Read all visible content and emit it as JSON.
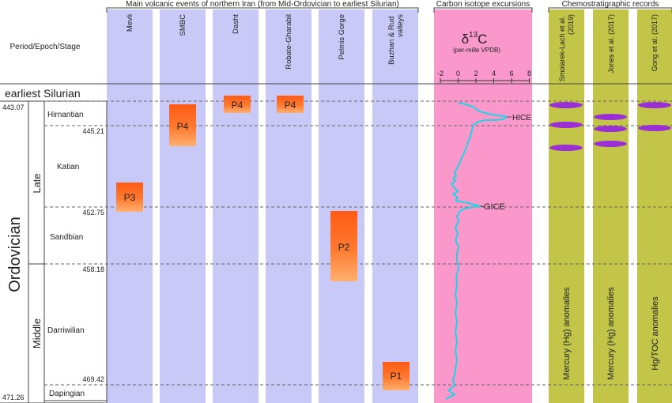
{
  "headers": {
    "volcanic": "Main volcanic events of northern Iran (from Mid-Ordovician to earliest Silurian)",
    "carbon": "Carbon isotope excursions",
    "chemo": "Chemostratigraphic records",
    "period_col": "Period/Epoch/Stage"
  },
  "volcanic_columns": [
    "Mevli",
    "SMBC",
    "Dasht",
    "Robate-Gharabil",
    "Pelmis Gorge",
    "Buzhan & Rud valleys"
  ],
  "chemo_columns": [
    {
      "name": "Smolarek-Lach et al. (2019)",
      "note": "Mercury (Hg) anomalies"
    },
    {
      "name": "Jones et al. (2017)",
      "note": "Mercury (Hg) anomalies"
    },
    {
      "name": "Gong et al. (2017)",
      "note": "Hg/TOC anomalies"
    }
  ],
  "carbon": {
    "symbol_delta": "δ",
    "symbol_sup": "13",
    "symbol_c": "C",
    "unit": "(per-mille VPDB)",
    "ticks": [
      "-2",
      "0",
      "2",
      "4",
      "6",
      "8"
    ],
    "hice": "HICE",
    "gice": "GICE"
  },
  "strat": {
    "silurian": "earliest Silurian",
    "ordovician": "Ordovician",
    "late": "Late",
    "middle": "Middle",
    "stages": [
      "Hirnantian",
      "Katian",
      "Sandbian",
      "Darriwilian",
      "Dapingian"
    ],
    "ages_left": [
      "443.07",
      "471.26"
    ],
    "ages_inner": [
      "445.21",
      "452.75",
      "458.18",
      "469.42"
    ]
  },
  "events": [
    "P4",
    "P4",
    "P4",
    "P3",
    "P2",
    "P1"
  ]
}
